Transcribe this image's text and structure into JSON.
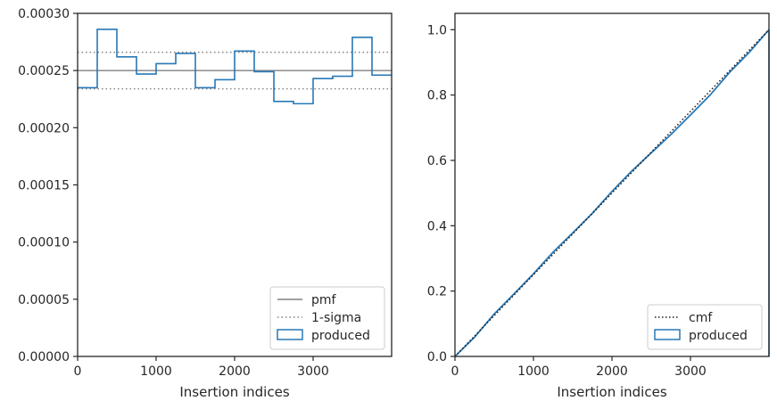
{
  "colors": {
    "produced": "#2878b5",
    "pmf": "#808080",
    "sigma": "#808080",
    "cmf": "#1a1a1a",
    "axes": "#262626"
  },
  "chart_data": [
    {
      "type": "step",
      "xlabel": "Insertion indices",
      "ylabel": "",
      "xlim": [
        0,
        4000
      ],
      "ylim": [
        0,
        0.0003
      ],
      "xticks": [
        0,
        1000,
        2000,
        3000
      ],
      "xtick_labels": [
        "0",
        "1000",
        "2000",
        "3000"
      ],
      "yticks": [
        0,
        5e-05,
        0.0001,
        0.00015,
        0.0002,
        0.00025,
        0.0003
      ],
      "ytick_labels": [
        "0.00000",
        "0.00005",
        "0.00010",
        "0.00015",
        "0.00020",
        "0.00025",
        "0.00030"
      ],
      "legend_position": "lower right",
      "legend": [
        "pmf",
        "1-sigma",
        "produced"
      ],
      "bin_edges": [
        0,
        250,
        500,
        750,
        1000,
        1250,
        1500,
        1750,
        2000,
        2250,
        2500,
        2750,
        3000,
        3250,
        3500,
        3750,
        4000
      ],
      "series": [
        {
          "name": "produced",
          "values": [
            0.000235,
            0.000286,
            0.000262,
            0.000247,
            0.000256,
            0.000265,
            0.000235,
            0.000242,
            0.000267,
            0.000249,
            0.000223,
            0.000221,
            0.000243,
            0.000245,
            0.000279,
            0.000246
          ]
        }
      ],
      "hlines": [
        {
          "name": "pmf",
          "y": 0.00025,
          "style": "solid"
        },
        {
          "name": "1-sigma",
          "y": 0.000266,
          "style": "dotted"
        },
        {
          "name": "1-sigma",
          "y": 0.000234,
          "style": "dotted"
        }
      ]
    },
    {
      "type": "line",
      "xlabel": "Insertion indices",
      "ylabel": "",
      "xlim": [
        0,
        4000
      ],
      "ylim": [
        0,
        1.05
      ],
      "xticks": [
        0,
        1000,
        2000,
        3000
      ],
      "xtick_labels": [
        "0",
        "1000",
        "2000",
        "3000"
      ],
      "yticks": [
        0,
        0.2,
        0.4,
        0.6,
        0.8,
        1.0
      ],
      "ytick_labels": [
        "0.0",
        "0.2",
        "0.4",
        "0.6",
        "0.8",
        "1.0"
      ],
      "legend_position": "lower right",
      "legend": [
        "cmf",
        "produced"
      ],
      "series": [
        {
          "name": "cmf",
          "style": "dotted",
          "x": [
            0,
            4000
          ],
          "y": [
            0,
            1.0
          ]
        },
        {
          "name": "produced",
          "style": "solid",
          "x": [
            0,
            250,
            500,
            750,
            1000,
            1250,
            1500,
            1750,
            2000,
            2250,
            2500,
            2750,
            3000,
            3250,
            3500,
            3750,
            4000
          ],
          "y": [
            0,
            0.059,
            0.13,
            0.191,
            0.253,
            0.319,
            0.378,
            0.438,
            0.505,
            0.567,
            0.623,
            0.679,
            0.739,
            0.8,
            0.87,
            0.931,
            1.0
          ]
        }
      ]
    }
  ]
}
